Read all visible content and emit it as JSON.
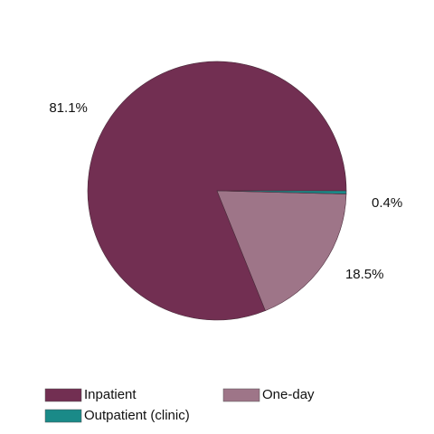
{
  "chart_data": {
    "type": "pie",
    "categories": [
      "Inpatient",
      "One-day",
      "Outpatient (clinic)"
    ],
    "values": [
      81.1,
      18.5,
      0.4
    ],
    "value_labels": [
      "81.1%",
      "18.5%",
      "0.4%"
    ],
    "colors": [
      "#722f52",
      "#9e7588",
      "#1a8a88"
    ]
  }
}
